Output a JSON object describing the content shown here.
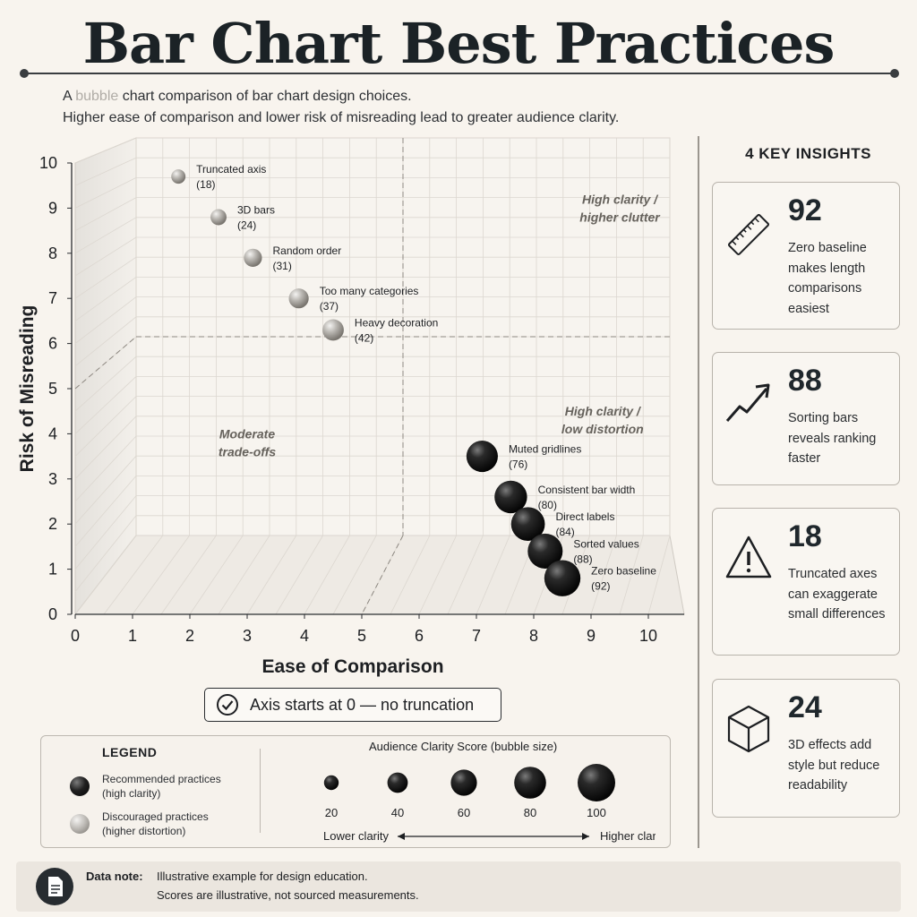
{
  "header": {
    "title": "Bar Chart Best Practices",
    "subtitle_line1_a": "A ",
    "subtitle_line1_muted": "bubble",
    "subtitle_line1_b": " chart comparison of bar chart design choices.",
    "subtitle_line2": "Higher ease of comparison and lower risk of misreading lead to greater audience clarity."
  },
  "chart_data": {
    "type": "scatter",
    "xlabel": "Ease of Comparison",
    "ylabel": "Risk of Misreading",
    "xlim": [
      0,
      10
    ],
    "ylim": [
      0,
      10
    ],
    "x_ticks": [
      "0",
      "1",
      "2",
      "3",
      "4",
      "5",
      "6",
      "7",
      "8",
      "9",
      "10"
    ],
    "y_ticks": [
      "0",
      "1",
      "2",
      "3",
      "4",
      "5",
      "6",
      "7",
      "8",
      "9",
      "10"
    ],
    "grid": true,
    "reference_lines": {
      "x": 5,
      "y": 5
    },
    "quadrant_labels": [
      {
        "line1": "High clarity /",
        "line2": "higher clutter"
      },
      {
        "line1": "High clarity /",
        "line2": "low distortion"
      },
      {
        "line1": "Moderate",
        "line2": "trade-offs"
      }
    ],
    "series": [
      {
        "name": "Discouraged practices (higher distortion)",
        "color": "#a9a6a1",
        "points": [
          {
            "label": "Truncated axis",
            "x": 1.8,
            "y": 9.7,
            "score": 18
          },
          {
            "label": "3D bars",
            "x": 2.5,
            "y": 8.8,
            "score": 24
          },
          {
            "label": "Random order",
            "x": 3.1,
            "y": 7.9,
            "score": 31
          },
          {
            "label": "Too many categories",
            "x": 3.9,
            "y": 7.0,
            "score": 37
          },
          {
            "label": "Heavy decoration",
            "x": 4.5,
            "y": 6.3,
            "score": 42
          }
        ]
      },
      {
        "name": "Recommended practices (high clarity)",
        "color": "#151515",
        "points": [
          {
            "label": "Muted gridlines",
            "x": 7.1,
            "y": 3.5,
            "score": 76
          },
          {
            "label": "Consistent bar width",
            "x": 7.6,
            "y": 2.6,
            "score": 80
          },
          {
            "label": "Direct labels",
            "x": 7.9,
            "y": 2.0,
            "score": 84
          },
          {
            "label": "Sorted values",
            "x": 8.2,
            "y": 1.4,
            "score": 88
          },
          {
            "label": "Zero baseline",
            "x": 8.5,
            "y": 0.8,
            "score": 92
          }
        ]
      }
    ],
    "size_encoding": {
      "title": "Audience Clarity Score (bubble size)",
      "values": [
        "20",
        "40",
        "60",
        "80",
        "100"
      ],
      "low_label": "Lower clarity",
      "high_label": "Higher clarity"
    }
  },
  "callout": {
    "text": "Axis starts at 0 — no truncation",
    "icon": "check-circle-icon"
  },
  "legend": {
    "title": "LEGEND",
    "recommended_line1": "Recommended practices",
    "recommended_line2": "(high clarity)",
    "discouraged_line1": "Discouraged practices",
    "discouraged_line2": "(higher distortion)"
  },
  "insights": {
    "heading": "4 KEY INSIGHTS",
    "cards": [
      {
        "value": "92",
        "text": "Zero baseline makes length comparisons easiest",
        "icon": "ruler-icon"
      },
      {
        "value": "88",
        "text": "Sorting bars reveals ranking faster",
        "icon": "trend-up-arrow-icon"
      },
      {
        "value": "18",
        "text": "Truncated axes can exaggerate small differences",
        "icon": "warning-triangle-icon"
      },
      {
        "value": "24",
        "text": "3D effects add style but reduce readability",
        "icon": "cube-icon"
      }
    ]
  },
  "data_note": {
    "label": "Data note:",
    "line1": "Illustrative example for design education.",
    "line2": "Scores are illustrative, not sourced measurements.",
    "icon": "document-icon"
  }
}
